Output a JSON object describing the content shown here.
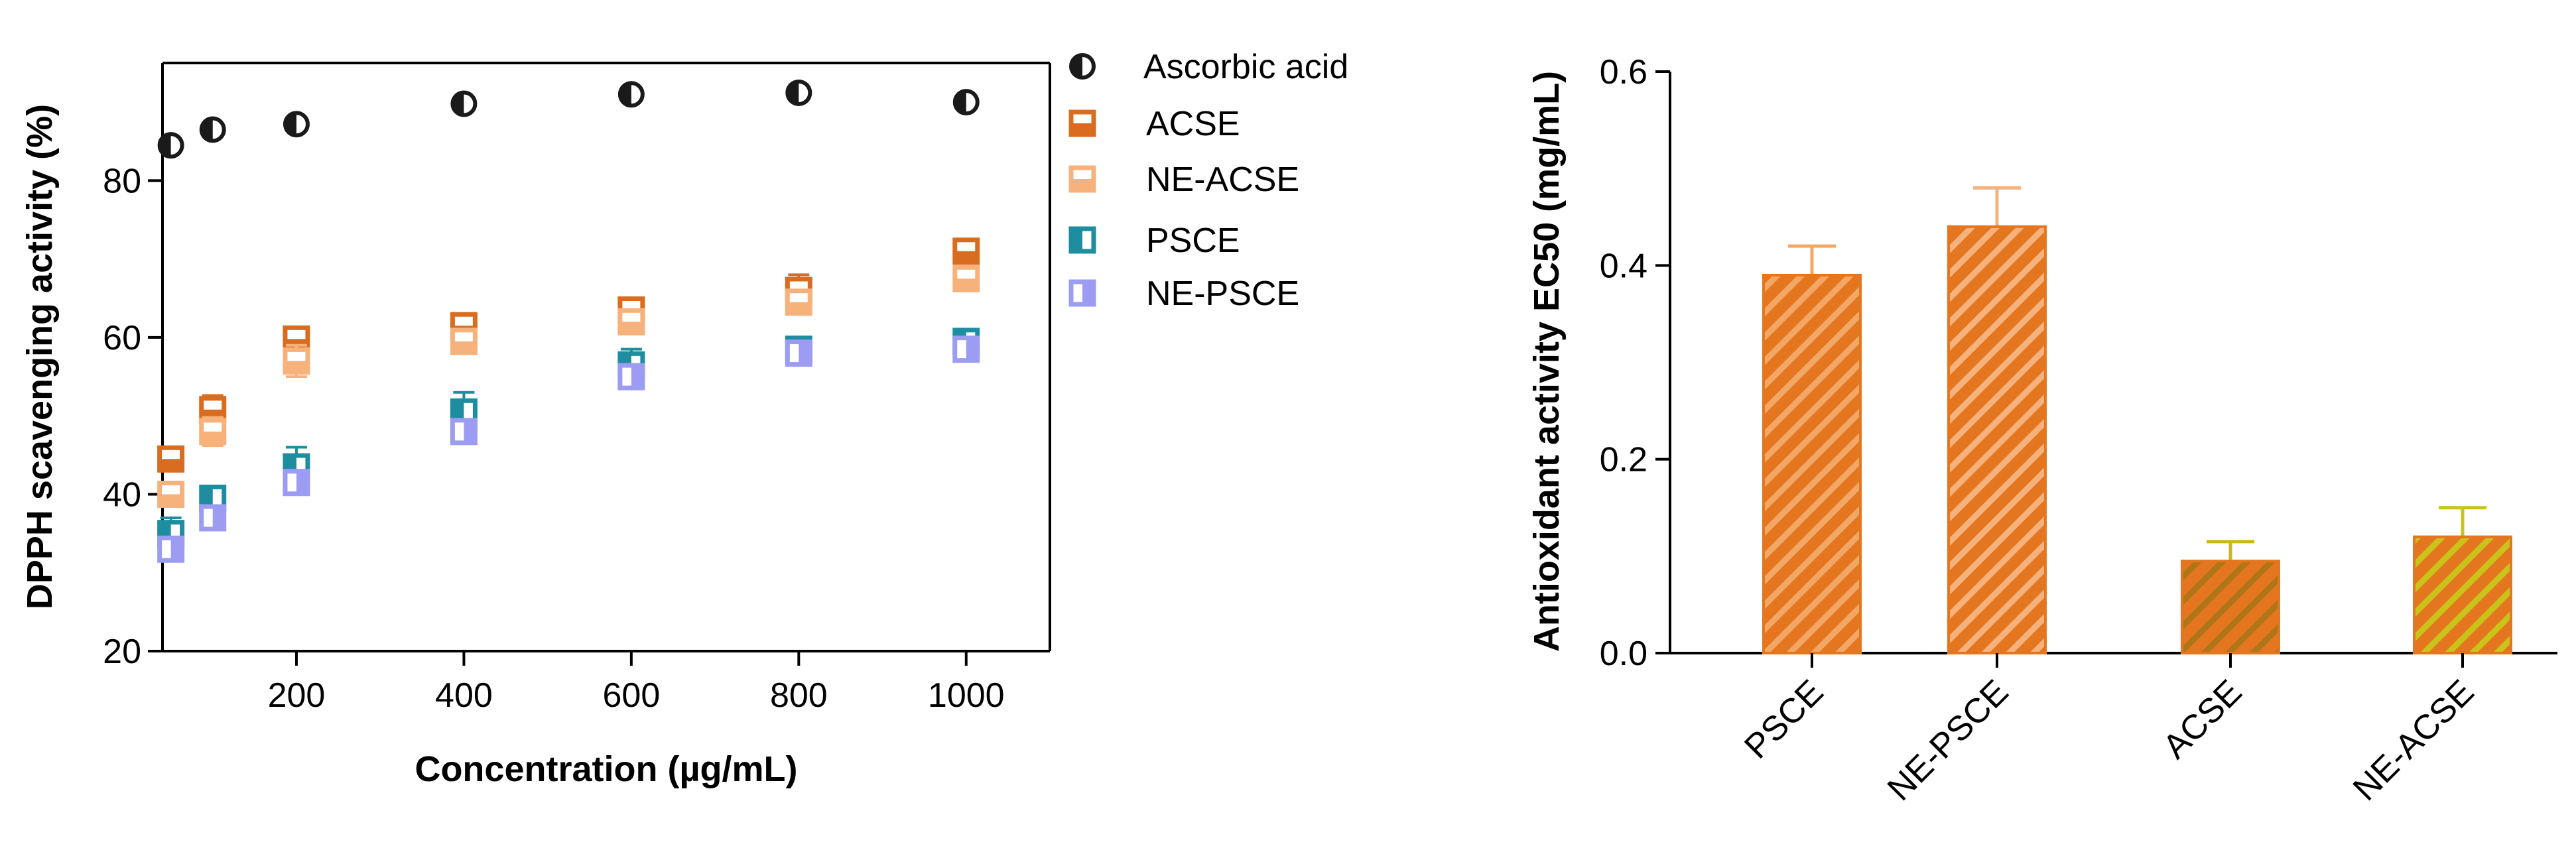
{
  "chart_data": [
    {
      "type": "scatter",
      "title": "",
      "xlabel": "Concentration (µg/mL)",
      "ylabel": "DPPH scavenging activity (%)",
      "xlim": [
        40,
        1100
      ],
      "ylim": [
        20,
        95
      ],
      "xticks": [
        200,
        400,
        600,
        800,
        1000
      ],
      "yticks": [
        20,
        40,
        60,
        80
      ],
      "x": [
        50,
        100,
        200,
        400,
        600,
        800,
        1000
      ],
      "legend_position": "right",
      "series": [
        {
          "name": "Ascorbic acid",
          "color": "#1a1a1a",
          "marker": "half-circle",
          "values": [
            84.5,
            86.5,
            87.2,
            89.8,
            91.0,
            91.2,
            90.0
          ],
          "errors": [
            0.8,
            0.8,
            0.8,
            0.8,
            0.8,
            0.8,
            0.8
          ]
        },
        {
          "name": "ACSE",
          "color": "#d96c1f",
          "marker": "half-square",
          "values": [
            44.5,
            50.8,
            59.8,
            61.5,
            63.5,
            66.0,
            71.0
          ],
          "errors": [
            1.5,
            1.8,
            1.5,
            1.5,
            1.2,
            2.0,
            1.5
          ]
        },
        {
          "name": "NE-ACSE",
          "color": "#f7b27c",
          "marker": "half-square",
          "values": [
            40.0,
            48.0,
            57.0,
            59.5,
            62.0,
            64.5,
            67.5
          ],
          "errors": [
            1.5,
            1.8,
            2.0,
            1.5,
            1.2,
            1.5,
            1.5
          ]
        },
        {
          "name": "PSCE",
          "color": "#1f8da0",
          "marker": "half-square",
          "values": [
            35.0,
            39.5,
            43.5,
            50.5,
            56.5,
            58.5,
            59.5
          ],
          "errors": [
            2.0,
            1.5,
            2.5,
            2.5,
            2.0,
            1.0,
            1.0
          ]
        },
        {
          "name": "NE-PSCE",
          "color": "#9b9cf2",
          "marker": "half-square",
          "values": [
            33.0,
            37.0,
            41.5,
            48.0,
            55.0,
            58.0,
            58.5
          ],
          "errors": [
            1.5,
            1.5,
            1.5,
            1.5,
            1.0,
            0.8,
            0.8
          ]
        }
      ]
    },
    {
      "type": "bar",
      "title": "",
      "xlabel": "",
      "ylabel": "Antioxidant activity EC50 (mg/mL)",
      "ylim": [
        0,
        0.6
      ],
      "yticks": [
        "0.0",
        "0.2",
        "0.4",
        "0.6"
      ],
      "categories": [
        "PSCE",
        "NE-PSCE",
        "ACSE",
        "NE-ACSE"
      ],
      "values": [
        0.39,
        0.44,
        0.095,
        0.12
      ],
      "errors": [
        0.03,
        0.04,
        0.02,
        0.03
      ],
      "fill_color": "#e4761f",
      "stripe_colors": [
        "#f3a766",
        "#f6b27d",
        "#b07516",
        "#c9c31a"
      ],
      "error_colors": [
        "#f3a766",
        "#f6b27d",
        "#c9b81b",
        "#c9c31a"
      ]
    }
  ]
}
